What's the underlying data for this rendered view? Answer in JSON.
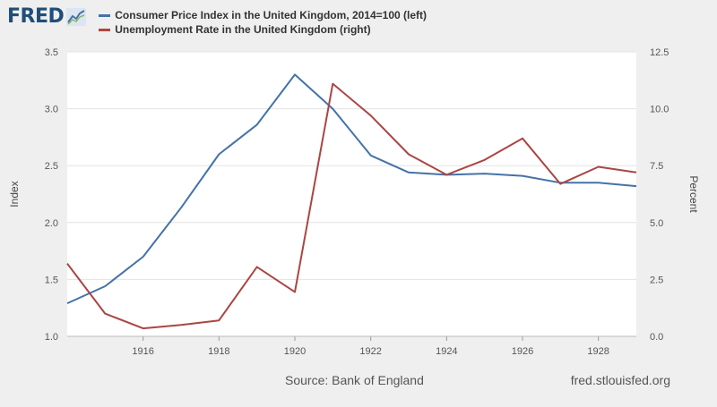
{
  "header": {
    "logo_text": "FRED"
  },
  "footer": {
    "source": "Source: Bank of England",
    "site": "fred.stlouisfed.org"
  },
  "chart_data": {
    "type": "line",
    "title": "",
    "x": [
      1914,
      1915,
      1916,
      1917,
      1918,
      1919,
      1920,
      1921,
      1922,
      1923,
      1924,
      1925,
      1926,
      1927,
      1928,
      1929
    ],
    "xlim": [
      1914,
      1929
    ],
    "xticks": [
      "1916",
      "1918",
      "1920",
      "1922",
      "1924",
      "1926",
      "1928"
    ],
    "left_axis": {
      "label": "Index",
      "ylim": [
        1.0,
        3.5
      ],
      "ticks": [
        "1.0",
        "1.5",
        "2.0",
        "2.5",
        "3.0",
        "3.5"
      ]
    },
    "right_axis": {
      "label": "Percent",
      "ylim": [
        0,
        12.5
      ],
      "ticks": [
        "0.0",
        "2.5",
        "5.0",
        "7.5",
        "10.0",
        "12.5"
      ]
    },
    "grid": true,
    "legend_position": "top-left",
    "series": [
      {
        "name": "Consumer Price Index in the United Kingdom, 2014=100 (left)",
        "axis": "left",
        "color": "#4572a7",
        "values": [
          1.29,
          1.44,
          1.7,
          2.13,
          2.6,
          2.86,
          3.3,
          3.0,
          2.59,
          2.44,
          2.42,
          2.43,
          2.41,
          2.35,
          2.35,
          2.32
        ]
      },
      {
        "name": "Unemployment Rate in the United Kingdom (right)",
        "axis": "right",
        "color": "#aa4643",
        "values": [
          3.2,
          1.0,
          0.35,
          0.5,
          0.7,
          3.05,
          1.95,
          11.1,
          9.7,
          8.0,
          7.1,
          7.75,
          8.7,
          6.7,
          7.45,
          7.2
        ]
      }
    ]
  }
}
